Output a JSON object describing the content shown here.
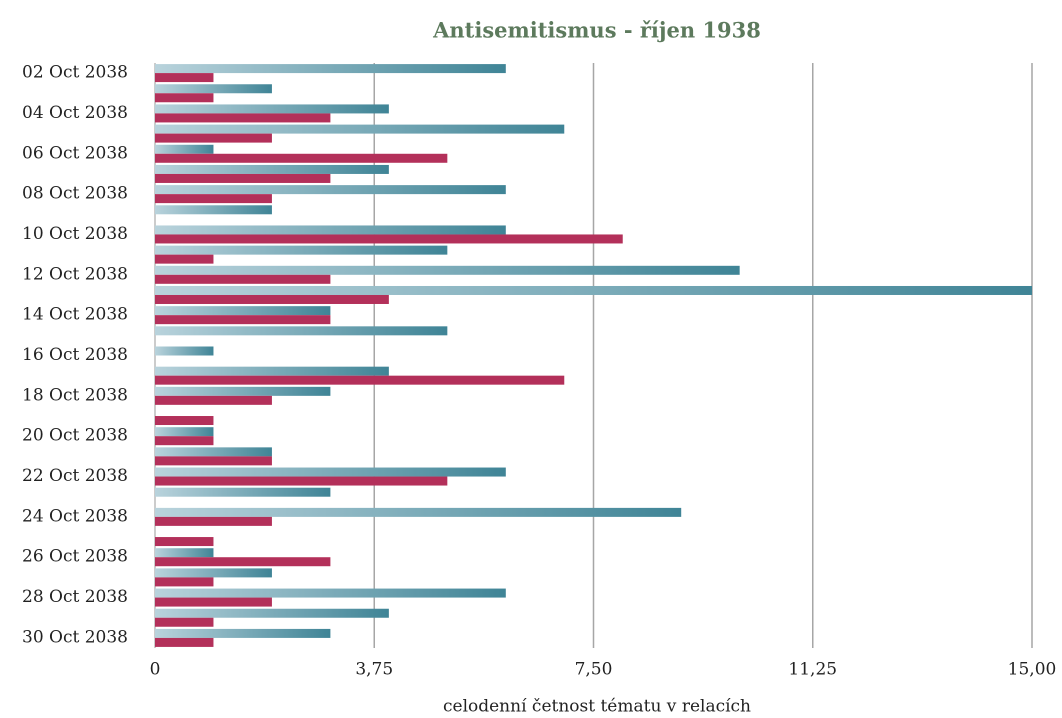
{
  "chart_data": {
    "type": "bar",
    "orientation": "horizontal",
    "title": "Antisemitismus - říjen 1938",
    "xlabel": "celodenní četnost tématu v relacích",
    "categories": [
      "02 Oct 2038",
      null,
      "04 Oct 2038",
      null,
      "06 Oct 2038",
      null,
      "08 Oct 2038",
      null,
      "10 Oct 2038",
      null,
      "12 Oct 2038",
      null,
      "14 Oct 2038",
      null,
      "16 Oct 2038",
      null,
      "18 Oct 2038",
      null,
      "20 Oct 2038",
      null,
      "22 Oct 2038",
      null,
      "24 Oct 2038",
      null,
      "26 Oct 2038",
      null,
      "28 Oct 2038",
      null,
      "30 Oct 2038"
    ],
    "series": [
      {
        "color": "#3f8496",
        "values": [
          6,
          2,
          4,
          7,
          1,
          4,
          6,
          2,
          6,
          5,
          10,
          15,
          3,
          5,
          1,
          4,
          3,
          0,
          1,
          2,
          6,
          3,
          9,
          0,
          1,
          2,
          6,
          4,
          3
        ]
      },
      {
        "color": "#b3305a",
        "values": [
          1,
          1,
          3,
          2,
          5,
          3,
          2,
          0,
          8,
          1,
          3,
          4,
          3,
          0,
          0,
          7,
          2,
          1,
          1,
          2,
          5,
          0,
          2,
          1,
          3,
          1,
          2,
          1,
          1
        ]
      }
    ],
    "xlim": [
      0,
      15
    ],
    "xticks": [
      0,
      {
        "value": 3.75,
        "label": "3,75"
      },
      {
        "value": 7.5,
        "label": "7,50"
      },
      {
        "value": 11.25,
        "label": "11,25"
      },
      {
        "value": 15,
        "label": "15,00"
      }
    ],
    "grid": true
  }
}
